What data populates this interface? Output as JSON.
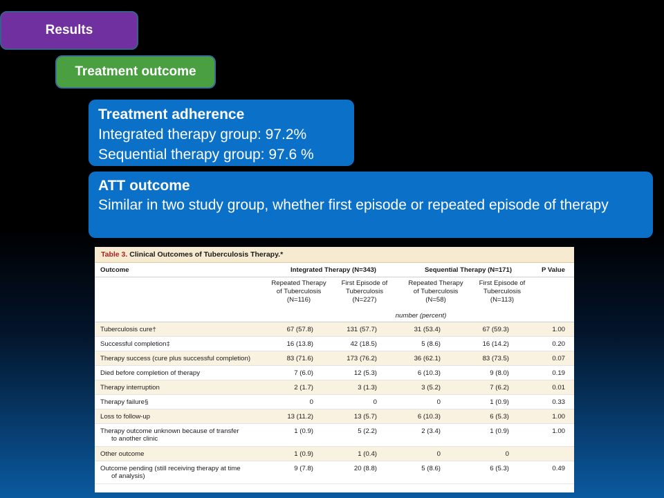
{
  "results_label": "Results",
  "treatment_outcome_label": "Treatment  outcome",
  "adherence": {
    "heading": "Treatment  adherence",
    "line1": "Integrated therapy group: 97.2%",
    "line2": "Sequential therapy group: 97.6 %"
  },
  "att": {
    "heading": "ATT outcome",
    "body": "Similar in two study group, whether first episode or repeated  episode of therapy"
  },
  "table": {
    "title_prefix": "Table 3.",
    "title_rest": "Clinical Outcomes of Tuberculosis Therapy.*",
    "col_outcome": "Outcome",
    "col_integrated": "Integrated Therapy (N=343)",
    "col_sequential": "Sequential Therapy (N=171)",
    "col_p": "P Value",
    "sub_headers": [
      {
        "l1": "Repeated Therapy",
        "l2": "of Tuberculosis",
        "l3": "(N=116)"
      },
      {
        "l1": "First Episode of",
        "l2": "Tuberculosis",
        "l3": "(N=227)"
      },
      {
        "l1": "Repeated Therapy",
        "l2": "of Tuberculosis",
        "l3": "(N=58)"
      },
      {
        "l1": "First Episode of",
        "l2": "Tuberculosis",
        "l3": "(N=113)"
      }
    ],
    "units": "number (percent)",
    "rows": [
      {
        "label": "Tuberculosis cure†",
        "label2": "",
        "v1": "67 (57.8)",
        "v2": "131 (57.7)",
        "v3": "31 (53.4)",
        "v4": "67 (59.3)",
        "p": "1.00"
      },
      {
        "label": "Successful completion‡",
        "label2": "",
        "v1": "16 (13.8)",
        "v2": "42 (18.5)",
        "v3": "5 (8.6)",
        "v4": "16 (14.2)",
        "p": "0.20"
      },
      {
        "label": "Therapy success (cure plus successful completion)",
        "label2": "",
        "v1": "83 (71.6)",
        "v2": "173 (76.2)",
        "v3": "36 (62.1)",
        "v4": "83 (73.5)",
        "p": "0.07"
      },
      {
        "label": "Died before completion of therapy",
        "label2": "",
        "v1": "7 (6.0)",
        "v2": "12 (5.3)",
        "v3": "6 (10.3)",
        "v4": "9 (8.0)",
        "p": "0.19"
      },
      {
        "label": "Therapy interruption",
        "label2": "",
        "v1": "2 (1.7)",
        "v2": "3 (1.3)",
        "v3": "3 (5.2)",
        "v4": "7 (6.2)",
        "p": "0.01"
      },
      {
        "label": "Therapy failure§",
        "label2": "",
        "v1": "0",
        "v2": "0",
        "v3": "0",
        "v4": "1 (0.9)",
        "p": "0.33"
      },
      {
        "label": "Loss to follow-up",
        "label2": "",
        "v1": "13 (11.2)",
        "v2": "13 (5.7)",
        "v3": "6 (10.3)",
        "v4": "6 (5.3)",
        "p": "1.00"
      },
      {
        "label": "Therapy outcome unknown because of transfer",
        "label2": "to another clinic",
        "v1": "1 (0.9)",
        "v2": "5 (2.2)",
        "v3": "2 (3.4)",
        "v4": "1 (0.9)",
        "p": "1.00"
      },
      {
        "label": "Other outcome",
        "label2": "",
        "v1": "1 (0.9)",
        "v2": "1 (0.4)",
        "v3": "0",
        "v4": "0",
        "p": ""
      },
      {
        "label": "Outcome pending (still receiving therapy at time",
        "label2": "of analysis)",
        "v1": "9 (7.8)",
        "v2": "20 (8.8)",
        "v3": "5 (8.6)",
        "v4": "6 (5.3)",
        "p": "0.49"
      }
    ]
  }
}
